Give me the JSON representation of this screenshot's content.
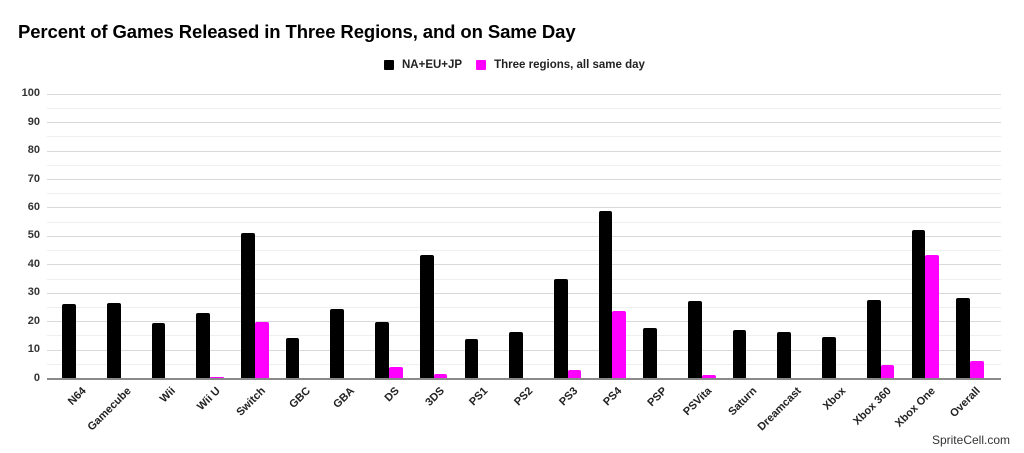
{
  "title": "Percent of Games Released in Three Regions, and on Same Day",
  "footer": "SpriteCell.com",
  "legend": [
    {
      "label": "NA+EU+JP",
      "color": "#000000"
    },
    {
      "label": "Three regions, all same day",
      "color": "#ff00ff"
    }
  ],
  "y_ticks": [
    "0",
    "10",
    "20",
    "30",
    "40",
    "50",
    "60",
    "70",
    "80",
    "90",
    "100"
  ],
  "chart_data": {
    "type": "bar",
    "title": "Percent of Games Released in Three Regions, and on Same Day",
    "xlabel": "",
    "ylabel": "",
    "ylim": [
      0,
      100
    ],
    "grid": true,
    "legend_position": "top",
    "categories": [
      "N64",
      "Gamecube",
      "Wii",
      "Wii U",
      "Switch",
      "GBC",
      "GBA",
      "DS",
      "3DS",
      "PS1",
      "PS2",
      "PS3",
      "PS4",
      "PSP",
      "PSVita",
      "Saturn",
      "Dreamcast",
      "Xbox",
      "Xbox 360",
      "Xbox One",
      "Overall"
    ],
    "series": [
      {
        "name": "NA+EU+JP",
        "color": "#000000",
        "values": [
          26.3,
          26.6,
          19.5,
          23.0,
          51.2,
          14.2,
          24.3,
          19.8,
          43.4,
          14.0,
          16.2,
          34.9,
          58.9,
          17.6,
          27.2,
          16.9,
          16.2,
          14.5,
          27.6,
          52.4,
          28.3
        ]
      },
      {
        "name": "Three regions, all same day",
        "color": "#ff00ff",
        "values": [
          0,
          0,
          0,
          0.4,
          19.8,
          0,
          0,
          4.0,
          1.7,
          0,
          0,
          2.9,
          23.7,
          0,
          1.4,
          0,
          0,
          0,
          4.6,
          43.5,
          6.2
        ]
      }
    ]
  }
}
